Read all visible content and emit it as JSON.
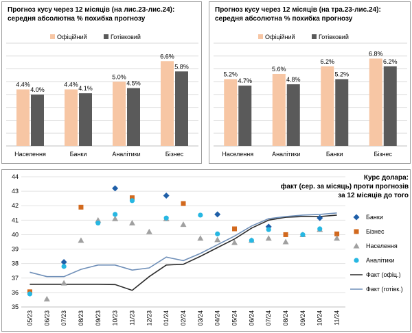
{
  "colors": {
    "official": "#f7c6a4",
    "cash": "#5a5a5a",
    "banks": "#1f5fa8",
    "business": "#d2691e",
    "population": "#a0a0a0",
    "analysts": "#27b7e2",
    "fact_official": "#2b2b2b",
    "fact_cash": "#6f8fb8"
  },
  "chart_data": [
    {
      "type": "bar",
      "title_lines": [
        "Прогноз кусу через 12 місяців (на лис.23-лис.24):",
        "середня абсолютна % похибка прогнозу"
      ],
      "categories": [
        "Населення",
        "Банки",
        "Аналітики",
        "Бізнес"
      ],
      "series": [
        {
          "name": "Офіційний",
          "values": [
            4.4,
            4.4,
            5.0,
            6.6
          ],
          "labels": [
            "4.4%",
            "4.4%",
            "5.0%",
            "6.6%"
          ]
        },
        {
          "name": "Готівковий",
          "values": [
            4.0,
            4.1,
            4.5,
            5.8
          ],
          "labels": [
            "4.0%",
            "4.1%",
            "4.5%",
            "5.8%"
          ]
        }
      ],
      "ylim": [
        0,
        8
      ],
      "grid": true,
      "legend": "top"
    },
    {
      "type": "bar",
      "title_lines": [
        "Прогноз кусу через 12 місяців (на тра.23-лис.24):",
        "середня абсолютна % похибка прогнозу"
      ],
      "categories": [
        "Населення",
        "Аналітики",
        "Банки",
        "Бізнес"
      ],
      "series": [
        {
          "name": "Офіційний",
          "values": [
            5.2,
            5.6,
            6.2,
            6.8
          ],
          "labels": [
            "5.2%",
            "5.6%",
            "6.2%",
            "6.8%"
          ]
        },
        {
          "name": "Готівковий",
          "values": [
            4.7,
            4.8,
            5.2,
            6.2
          ],
          "labels": [
            "4.7%",
            "4.8%",
            "5.2%",
            "6.2%"
          ]
        }
      ],
      "ylim": [
        0,
        8
      ],
      "grid": true,
      "legend": "top"
    },
    {
      "type": "line",
      "title_lines": [
        "Курс долара:",
        "факт (сер. за місяць) проти прогнозів",
        "за 12 місяців до того"
      ],
      "categories": [
        "05/23",
        "06/23",
        "07/23",
        "08/23",
        "09/23",
        "10/23",
        "11/23",
        "12/23",
        "01/24",
        "02/24",
        "03/24",
        "04/24",
        "05/24",
        "06/24",
        "07/24",
        "08/24",
        "09/24",
        "10/24",
        "11/24"
      ],
      "yticks": [
        35,
        36,
        37,
        38,
        39,
        40,
        41,
        42,
        43,
        44
      ],
      "ylim": [
        35,
        44
      ],
      "legend": "right",
      "lines": [
        {
          "name": "Факт (офіц.)",
          "values": [
            36.57,
            36.57,
            36.57,
            36.57,
            36.57,
            36.55,
            36.15,
            37.1,
            37.9,
            37.95,
            38.5,
            39.1,
            39.7,
            40.45,
            41.0,
            41.2,
            41.25,
            41.25,
            41.35
          ]
        },
        {
          "name": "Факт (готівк.)",
          "values": [
            37.4,
            37.1,
            37.1,
            37.6,
            37.9,
            37.9,
            37.55,
            37.7,
            38.45,
            38.2,
            38.7,
            39.3,
            39.9,
            40.6,
            41.1,
            41.25,
            41.35,
            41.4,
            41.5
          ]
        }
      ],
      "scatter": [
        {
          "name": "Банки",
          "marker": "diamond",
          "points": [
            {
              "x": "07/23",
              "y": 38.1
            },
            {
              "x": "10/23",
              "y": 43.2
            },
            {
              "x": "01/24",
              "y": 42.7
            },
            {
              "x": "04/24",
              "y": 41.4
            },
            {
              "x": "07/24",
              "y": 40.55
            },
            {
              "x": "10/24",
              "y": 41.15
            }
          ]
        },
        {
          "name": "Бізнес",
          "marker": "square",
          "points": [
            {
              "x": "05/23",
              "y": 36.05
            },
            {
              "x": "08/23",
              "y": 41.9
            },
            {
              "x": "11/23",
              "y": 42.55
            },
            {
              "x": "02/24",
              "y": 42.15
            },
            {
              "x": "05/24",
              "y": 40.4
            },
            {
              "x": "08/24",
              "y": 40.0
            },
            {
              "x": "11/24",
              "y": 40.05
            }
          ]
        },
        {
          "name": "Населення",
          "marker": "triangle",
          "points": [
            {
              "x": "06/23",
              "y": 35.55
            },
            {
              "x": "07/23",
              "y": 36.65
            },
            {
              "x": "08/23",
              "y": 39.6
            },
            {
              "x": "09/23",
              "y": 41.0
            },
            {
              "x": "10/23",
              "y": 41.1
            },
            {
              "x": "11/23",
              "y": 40.8
            },
            {
              "x": "12/23",
              "y": 40.2
            },
            {
              "x": "01/24",
              "y": 41.1
            },
            {
              "x": "02/24",
              "y": 40.7
            },
            {
              "x": "03/24",
              "y": 39.75
            },
            {
              "x": "04/24",
              "y": 39.65
            },
            {
              "x": "05/24",
              "y": 39.45
            },
            {
              "x": "06/24",
              "y": 39.6
            },
            {
              "x": "07/24",
              "y": 39.75
            },
            {
              "x": "08/24",
              "y": 39.5
            },
            {
              "x": "09/24",
              "y": 40.0
            },
            {
              "x": "10/24",
              "y": 40.35
            },
            {
              "x": "11/24",
              "y": 39.75
            }
          ]
        },
        {
          "name": "Аналітики",
          "marker": "circle",
          "points": [
            {
              "x": "05/23",
              "y": 35.9
            },
            {
              "x": "07/23",
              "y": 37.8
            },
            {
              "x": "09/23",
              "y": 40.8
            },
            {
              "x": "10/23",
              "y": 41.4
            },
            {
              "x": "11/23",
              "y": 42.35
            },
            {
              "x": "01/24",
              "y": 41.15
            },
            {
              "x": "03/24",
              "y": 41.35
            },
            {
              "x": "04/24",
              "y": 40.05
            },
            {
              "x": "06/24",
              "y": 39.6
            },
            {
              "x": "07/24",
              "y": 40.35
            },
            {
              "x": "09/24",
              "y": 40.0
            },
            {
              "x": "10/24",
              "y": 40.4
            }
          ]
        }
      ],
      "legend_order": [
        "Банки",
        "Бізнес",
        "Населення",
        "Аналітики",
        "Факт (офіц.)",
        "Факт (готівк.)"
      ]
    }
  ]
}
